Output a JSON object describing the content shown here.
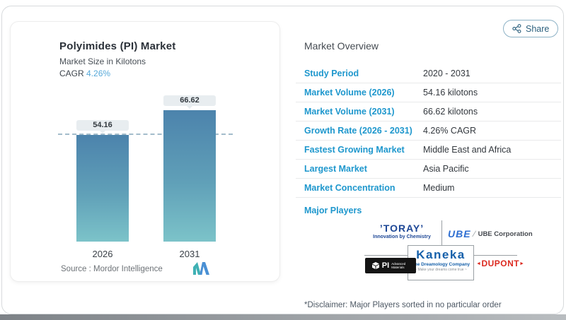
{
  "share": {
    "label": "Share"
  },
  "chart_card": {
    "title": "Polyimides (PI) Market",
    "subtitle": "Market Size in Kilotons",
    "cagr_label": "CAGR",
    "cagr_value": "4.26%",
    "source_text": "Source :  Mordor Intelligence"
  },
  "chart_data": {
    "type": "bar",
    "title": "Polyimides (PI) Market",
    "ylabel": "Market Size in Kilotons",
    "categories": [
      "2026",
      "2031"
    ],
    "values": [
      54.16,
      66.62
    ],
    "reference_line_at": 54.16,
    "bar_gradient_top": "#4c83ac",
    "bar_gradient_bottom": "#7cc3c9",
    "value_label_bg": "#e8edf0",
    "legend": "none",
    "grid": "off"
  },
  "overview": {
    "heading": "Market Overview",
    "rows": [
      {
        "label": "Study Period",
        "value": "2020 - 2031"
      },
      {
        "label": "Market Volume (2026)",
        "value": "54.16 kilotons"
      },
      {
        "label": "Market Volume (2031)",
        "value": "66.62 kilotons"
      },
      {
        "label": "Growth Rate (2026 - 2031)",
        "value": "4.26% CAGR"
      },
      {
        "label": "Fastest Growing Market",
        "value": "Middle East and Africa"
      },
      {
        "label": "Largest Market",
        "value": "Asia Pacific"
      },
      {
        "label": "Market Concentration",
        "value": "Medium"
      }
    ],
    "major_players_label": "Major Players",
    "accent_color": "#1e97cd"
  },
  "players": {
    "toray": {
      "name": "’TORAY’",
      "tagline": "Innovation by Chemistry"
    },
    "ube": {
      "name": "UBE",
      "divider": "∕",
      "suffix": "UBE Corporation"
    },
    "pi": {
      "name": "PI",
      "suffix": "Advanced Materials"
    },
    "kaneka": {
      "name": "Kaneka",
      "tagline": "The Dreamology Company",
      "subtagline": "~ Make your dreams come true ~"
    },
    "dupont": {
      "left": "◄",
      "name": "DUPONT",
      "right": "►"
    }
  },
  "disclaimer": "*Disclaimer: Major Players sorted in no particular order"
}
